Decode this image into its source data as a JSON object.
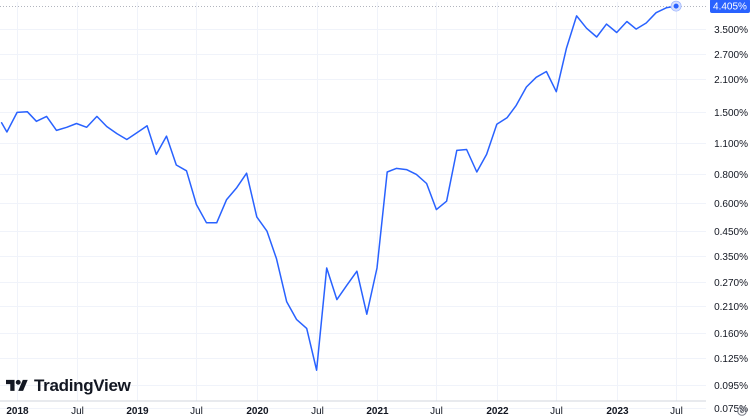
{
  "chart_data": {
    "type": "line",
    "title": "",
    "xlabel": "",
    "ylabel": "",
    "y_scale": "log",
    "ylim": [
      0.072,
      4.5
    ],
    "xlim": [
      "2017-11-10",
      "2023-09-30"
    ],
    "grid": true,
    "line_color": "#2962ff",
    "y_ticks": [
      "4.405%",
      "3.500%",
      "2.700%",
      "2.100%",
      "1.500%",
      "1.100%",
      "0.800%",
      "0.600%",
      "0.450%",
      "0.350%",
      "0.270%",
      "0.210%",
      "0.160%",
      "0.125%",
      "0.095%",
      "0.075%"
    ],
    "y_tick_values": [
      4.405,
      3.5,
      2.7,
      2.1,
      1.5,
      1.1,
      0.8,
      0.6,
      0.45,
      0.35,
      0.27,
      0.21,
      0.16,
      0.125,
      0.095,
      0.075
    ],
    "x_ticks": [
      {
        "label": "2018",
        "date": "2018-01-01"
      },
      {
        "label": "Jul",
        "date": "2018-07-01"
      },
      {
        "label": "2019",
        "date": "2019-01-01"
      },
      {
        "label": "Jul",
        "date": "2019-07-01"
      },
      {
        "label": "2020",
        "date": "2020-01-01"
      },
      {
        "label": "Jul",
        "date": "2020-07-01"
      },
      {
        "label": "2021",
        "date": "2021-01-01"
      },
      {
        "label": "Jul",
        "date": "2021-07-01"
      },
      {
        "label": "2022",
        "date": "2022-01-01"
      },
      {
        "label": "Jul",
        "date": "2022-07-01"
      },
      {
        "label": "2023",
        "date": "2023-01-01"
      },
      {
        "label": "Jul",
        "date": "2023-07-01"
      }
    ],
    "last_value_label": "4.405%",
    "series": [
      {
        "points": [
          {
            "x": "2017-11-15",
            "y": 1.35
          },
          {
            "x": "2017-12-01",
            "y": 1.23
          },
          {
            "x": "2018-01-01",
            "y": 1.5
          },
          {
            "x": "2018-02-01",
            "y": 1.51
          },
          {
            "x": "2018-03-01",
            "y": 1.37
          },
          {
            "x": "2018-04-01",
            "y": 1.44
          },
          {
            "x": "2018-05-01",
            "y": 1.25
          },
          {
            "x": "2018-06-01",
            "y": 1.29
          },
          {
            "x": "2018-07-01",
            "y": 1.34
          },
          {
            "x": "2018-08-01",
            "y": 1.29
          },
          {
            "x": "2018-09-01",
            "y": 1.44
          },
          {
            "x": "2018-10-01",
            "y": 1.3
          },
          {
            "x": "2018-11-01",
            "y": 1.21
          },
          {
            "x": "2018-12-01",
            "y": 1.14
          },
          {
            "x": "2019-01-01",
            "y": 1.22
          },
          {
            "x": "2019-02-01",
            "y": 1.31
          },
          {
            "x": "2019-03-01",
            "y": 0.98
          },
          {
            "x": "2019-04-01",
            "y": 1.18
          },
          {
            "x": "2019-05-01",
            "y": 0.88
          },
          {
            "x": "2019-06-01",
            "y": 0.83
          },
          {
            "x": "2019-07-01",
            "y": 0.59
          },
          {
            "x": "2019-08-01",
            "y": 0.49
          },
          {
            "x": "2019-09-01",
            "y": 0.49
          },
          {
            "x": "2019-10-01",
            "y": 0.62
          },
          {
            "x": "2019-11-01",
            "y": 0.7
          },
          {
            "x": "2019-12-01",
            "y": 0.81
          },
          {
            "x": "2020-01-01",
            "y": 0.52
          },
          {
            "x": "2020-02-01",
            "y": 0.45
          },
          {
            "x": "2020-03-01",
            "y": 0.34
          },
          {
            "x": "2020-04-01",
            "y": 0.22
          },
          {
            "x": "2020-05-01",
            "y": 0.184
          },
          {
            "x": "2020-06-01",
            "y": 0.168
          },
          {
            "x": "2020-07-01",
            "y": 0.11
          },
          {
            "x": "2020-08-01",
            "y": 0.31
          },
          {
            "x": "2020-09-01",
            "y": 0.225
          },
          {
            "x": "2020-10-01",
            "y": 0.26
          },
          {
            "x": "2020-11-01",
            "y": 0.3
          },
          {
            "x": "2020-12-01",
            "y": 0.194
          },
          {
            "x": "2021-01-01",
            "y": 0.31
          },
          {
            "x": "2021-02-01",
            "y": 0.82
          },
          {
            "x": "2021-03-01",
            "y": 0.85
          },
          {
            "x": "2021-04-01",
            "y": 0.84
          },
          {
            "x": "2021-05-01",
            "y": 0.8
          },
          {
            "x": "2021-06-01",
            "y": 0.73
          },
          {
            "x": "2021-07-01",
            "y": 0.56
          },
          {
            "x": "2021-08-01",
            "y": 0.61
          },
          {
            "x": "2021-09-01",
            "y": 1.02
          },
          {
            "x": "2021-10-01",
            "y": 1.03
          },
          {
            "x": "2021-11-01",
            "y": 0.82
          },
          {
            "x": "2021-12-01",
            "y": 0.98
          },
          {
            "x": "2022-01-01",
            "y": 1.33
          },
          {
            "x": "2022-02-01",
            "y": 1.42
          },
          {
            "x": "2022-03-01",
            "y": 1.61
          },
          {
            "x": "2022-04-01",
            "y": 1.94
          },
          {
            "x": "2022-05-01",
            "y": 2.14
          },
          {
            "x": "2022-06-01",
            "y": 2.27
          },
          {
            "x": "2022-07-01",
            "y": 1.85
          },
          {
            "x": "2022-08-01",
            "y": 2.87
          },
          {
            "x": "2022-09-01",
            "y": 3.99
          },
          {
            "x": "2022-10-01",
            "y": 3.52
          },
          {
            "x": "2022-11-01",
            "y": 3.22
          },
          {
            "x": "2022-12-01",
            "y": 3.67
          },
          {
            "x": "2023-01-01",
            "y": 3.37
          },
          {
            "x": "2023-02-01",
            "y": 3.77
          },
          {
            "x": "2023-03-01",
            "y": 3.49
          },
          {
            "x": "2023-04-01",
            "y": 3.71
          },
          {
            "x": "2023-05-01",
            "y": 4.12
          },
          {
            "x": "2023-06-01",
            "y": 4.33
          },
          {
            "x": "2023-07-01",
            "y": 4.405
          }
        ]
      }
    ]
  },
  "brand": {
    "name": "TradingView",
    "icon": "tradingview-logo-icon"
  },
  "controls": {
    "settings_icon": "settings-icon"
  }
}
